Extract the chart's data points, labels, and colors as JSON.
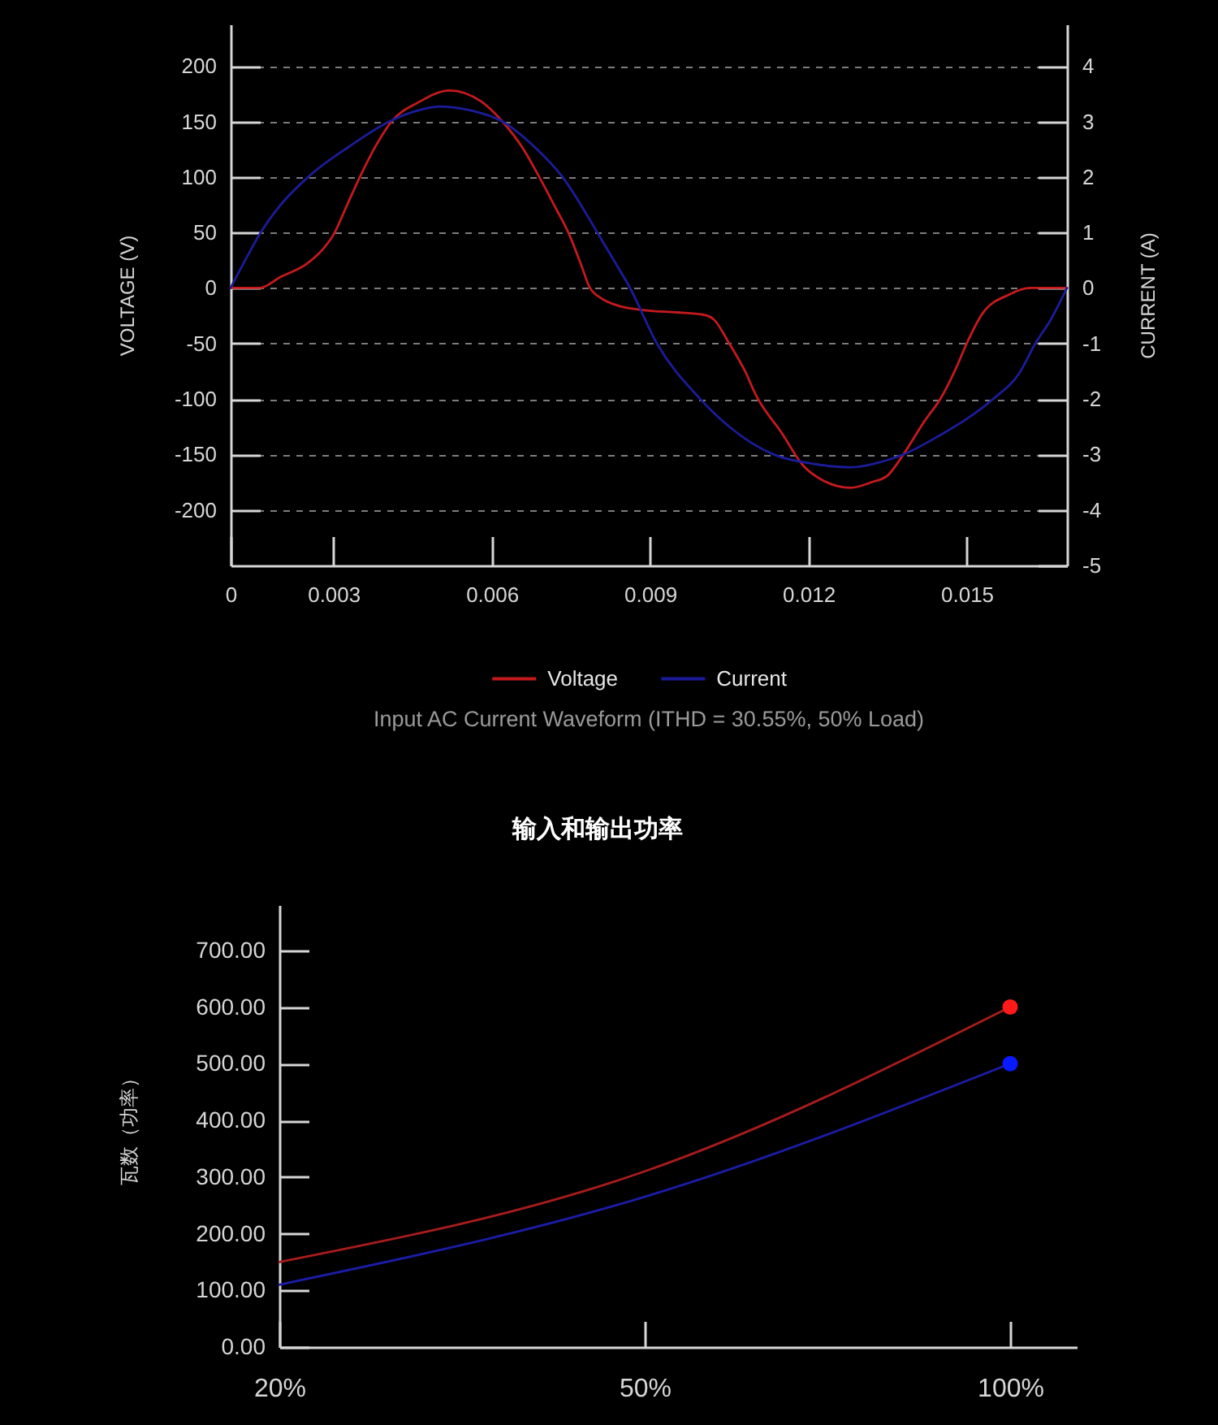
{
  "chart_data": [
    {
      "type": "line",
      "title": "Input AC Current Waveform (ITHD = 30.55%, 50% Load)",
      "ylabel": "VOLTAGE (V)",
      "y2label": "CURRENT (A)",
      "xlim": [
        0.00105,
        0.0169
      ],
      "xticks": [
        {
          "value": 0.00105,
          "label": "0"
        },
        0.003,
        0.006,
        0.009,
        0.012,
        0.015
      ],
      "ylim": [
        -250,
        237.5
      ],
      "yticks": [
        -200,
        -150,
        -100,
        -50,
        0,
        50,
        100,
        150,
        200
      ],
      "y2lim": [
        -5,
        4.75
      ],
      "y2ticks": [
        -5,
        -4,
        -3,
        -2,
        -1,
        0,
        1,
        2,
        3,
        4
      ],
      "grid": "y",
      "legend": "bottom",
      "series": [
        {
          "name": "Voltage",
          "color": "#c41a1e",
          "x": [
            0.00105,
            0.0016,
            0.002,
            0.0025,
            0.0028,
            0.003,
            0.00326,
            0.0035,
            0.0038,
            0.0041,
            0.0046,
            0.0052,
            0.0058,
            0.0062,
            0.0066,
            0.0069,
            0.0072,
            0.00745,
            0.0077,
            0.00785,
            0.0081,
            0.0084,
            0.0089,
            0.0095,
            0.01,
            0.0102,
            0.0105,
            0.0108,
            0.011,
            0.0115,
            0.0119,
            0.0123,
            0.0128,
            0.0132,
            0.0135,
            0.0138,
            0.0142,
            0.0145,
            0.0148,
            0.015,
            0.0153,
            0.0158,
            0.0162,
            0.0169
          ],
          "values": [
            0,
            0,
            10,
            22,
            35,
            48,
            75,
            100,
            128,
            150,
            167,
            178,
            168,
            150,
            125,
            100,
            73,
            50,
            20,
            1,
            -10,
            -16,
            -20,
            -22,
            -24,
            -28,
            -50,
            -75,
            -96,
            -131,
            -160,
            -174,
            -180,
            -175,
            -169,
            -150,
            -120,
            -100,
            -72,
            -50,
            -23,
            -6,
            0,
            0
          ]
        },
        {
          "name": "Current",
          "color": "#1c1c9a",
          "axis": "y2",
          "x": [
            0.00105,
            0.00127,
            0.00162,
            0.002,
            0.00252,
            0.0033,
            0.00406,
            0.0045,
            0.005,
            0.0056,
            0.0062,
            0.0068,
            0.00734,
            0.008,
            0.0083,
            0.00862,
            0.00913,
            0.00995,
            0.0105,
            0.01134,
            0.0121,
            0.0128,
            0.0135,
            0.0138,
            0.0145,
            0.015,
            0.0155,
            0.016,
            0.0163,
            0.0166,
            0.0169
          ],
          "values": [
            0,
            0.4,
            1,
            1.5,
            2,
            2.55,
            3,
            3.17,
            3.27,
            3.2,
            3,
            2.55,
            2,
            1,
            0.52,
            0,
            -1,
            -2,
            -2.5,
            -3,
            -3.17,
            -3.23,
            -3.1,
            -3,
            -2.65,
            -2.36,
            -2,
            -1.53,
            -1,
            -0.56,
            0
          ]
        }
      ]
    },
    {
      "type": "line",
      "title": "输入和输出功率",
      "ylabel": "瓦数（功率）",
      "categories": [
        "20%",
        "50%",
        "100%"
      ],
      "ylim": [
        0,
        780
      ],
      "yticks": [
        {
          "value": 0,
          "label": "0.00"
        },
        {
          "value": 100,
          "label": "100.00"
        },
        {
          "value": 200,
          "label": "200.00"
        },
        {
          "value": 300,
          "label": "300.00"
        },
        {
          "value": 400,
          "label": "400.00"
        },
        {
          "value": 500,
          "label": "500.00"
        },
        {
          "value": 600,
          "label": "600.00"
        },
        {
          "value": 700,
          "label": "700.00"
        }
      ],
      "series": [
        {
          "color": "#a81c1c",
          "values": [
            150,
            310,
            600
          ]
        },
        {
          "color": "#1c1ca8",
          "values": [
            110,
            265,
            500
          ]
        },
        {
          "type": "scatter",
          "color": "#ff1a1a",
          "x": [
            "100%"
          ],
          "values": [
            600
          ]
        },
        {
          "type": "scatter",
          "color": "#0a1aff",
          "x": [
            "100%"
          ],
          "values": [
            500
          ]
        }
      ]
    }
  ]
}
